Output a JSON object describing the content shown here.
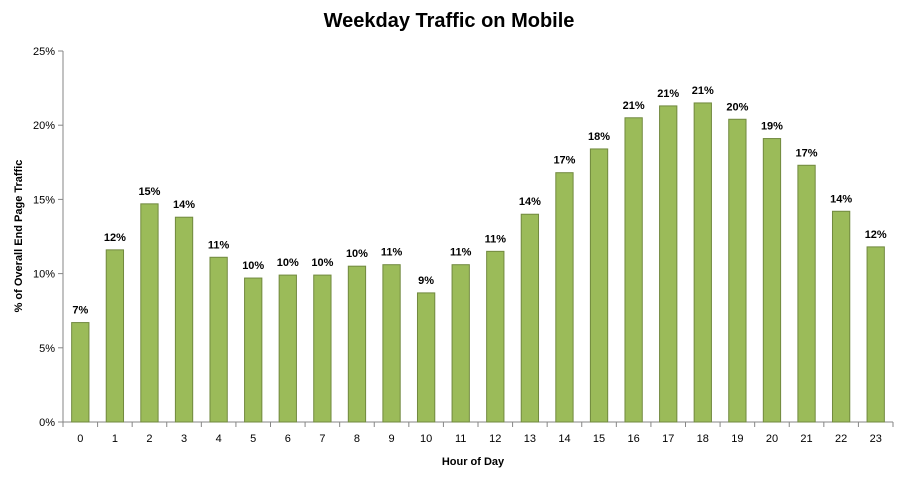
{
  "chart_data": {
    "type": "bar",
    "title": "Weekday Traffic on Mobile",
    "xlabel": "Hour of Day",
    "ylabel": "% of Overall End Page Traffic",
    "ylim": [
      0,
      25
    ],
    "yticks": [
      "0%",
      "5%",
      "10%",
      "15%",
      "20%",
      "25%"
    ],
    "categories": [
      "0",
      "1",
      "2",
      "3",
      "4",
      "5",
      "6",
      "7",
      "8",
      "9",
      "10",
      "11",
      "12",
      "13",
      "14",
      "15",
      "16",
      "17",
      "18",
      "19",
      "20",
      "21",
      "22",
      "23"
    ],
    "values": [
      6.7,
      11.6,
      14.7,
      13.8,
      11.1,
      9.7,
      9.9,
      9.9,
      10.5,
      10.6,
      8.7,
      10.6,
      11.5,
      14.0,
      16.8,
      18.4,
      20.5,
      21.3,
      21.5,
      20.4,
      19.1,
      17.3,
      14.2,
      11.8
    ],
    "data_labels": [
      "7%",
      "12%",
      "15%",
      "14%",
      "11%",
      "10%",
      "10%",
      "10%",
      "10%",
      "11%",
      "9%",
      "11%",
      "11%",
      "14%",
      "17%",
      "18%",
      "21%",
      "21%",
      "21%",
      "20%",
      "19%",
      "17%",
      "14%",
      "12%"
    ],
    "grid": false,
    "legend": "none",
    "colors": {
      "bar_fill": "#9BBB59",
      "bar_stroke": "#71893F",
      "axis": "#868686"
    }
  }
}
